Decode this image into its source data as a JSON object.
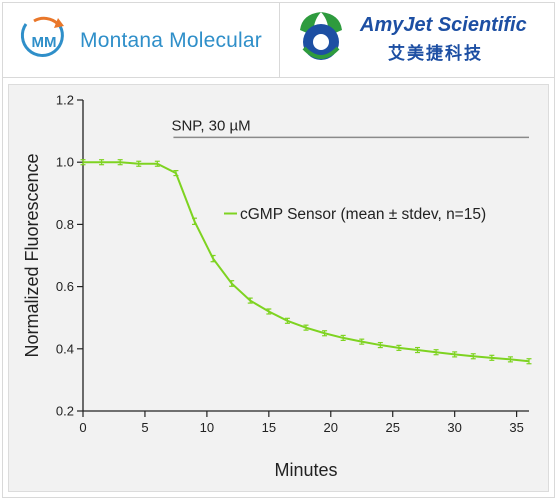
{
  "header": {
    "left_logo": {
      "monogram": "MM",
      "name": "Montana Molecular"
    },
    "right_logo": {
      "name": "AmyJet Scientific",
      "name_cn": "艾美捷科技"
    },
    "colors": {
      "mm_blue": "#2f8fc9",
      "mm_orange": "#e9772a",
      "amy_blue": "#1d4fa3",
      "amy_green": "#2e9b3e"
    }
  },
  "chart_data": {
    "type": "line",
    "xlabel": "Minutes",
    "ylabel": "Normalized Fluorescence",
    "xlim": [
      0,
      36
    ],
    "ylim": [
      0.2,
      1.2
    ],
    "xticks": [
      0,
      5,
      10,
      15,
      20,
      25,
      30,
      35
    ],
    "yticks": [
      0.2,
      0.4,
      0.6,
      0.8,
      1.0,
      1.2
    ],
    "ytick_labels": [
      "0.2",
      "0.4",
      "0.6",
      "0.8",
      "1.0",
      "1.2"
    ],
    "grid": false,
    "legend_placement": "right",
    "series": [
      {
        "name": "cGMP Sensor (mean ± stdev, n=15)",
        "color": "#7ed321",
        "x": [
          0,
          1.5,
          3,
          4.5,
          6,
          7.5,
          9,
          10.5,
          12,
          13.5,
          15,
          16.5,
          18,
          19.5,
          21,
          22.5,
          24,
          25.5,
          27,
          28.5,
          30,
          31.5,
          33,
          34.5,
          36
        ],
        "y": [
          1.0,
          1.0,
          1.0,
          0.995,
          0.995,
          0.965,
          0.81,
          0.69,
          0.61,
          0.555,
          0.52,
          0.49,
          0.468,
          0.45,
          0.435,
          0.423,
          0.412,
          0.403,
          0.396,
          0.389,
          0.382,
          0.376,
          0.371,
          0.366,
          0.36
        ],
        "error": [
          0.005,
          0.005,
          0.005,
          0.005,
          0.005,
          0.008,
          0.01,
          0.01,
          0.009,
          0.008,
          0.008,
          0.007,
          0.007,
          0.007,
          0.006,
          0.006,
          0.006,
          0.006,
          0.006,
          0.006,
          0.006,
          0.006,
          0.006,
          0.006,
          0.007
        ]
      }
    ],
    "annotations": [
      {
        "text": "SNP, 30 µM",
        "x_start": 7.3,
        "x_end": 36,
        "y": 1.08
      }
    ]
  }
}
